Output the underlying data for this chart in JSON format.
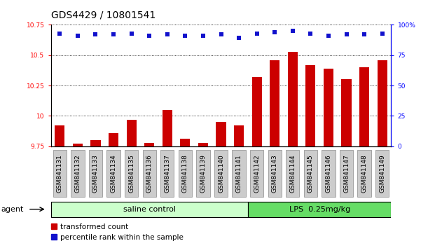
{
  "title": "GDS4429 / 10801541",
  "samples": [
    "GSM841131",
    "GSM841132",
    "GSM841133",
    "GSM841134",
    "GSM841135",
    "GSM841136",
    "GSM841137",
    "GSM841138",
    "GSM841139",
    "GSM841140",
    "GSM841141",
    "GSM841142",
    "GSM841143",
    "GSM841144",
    "GSM841145",
    "GSM841146",
    "GSM841147",
    "GSM841148",
    "GSM841149"
  ],
  "bar_values": [
    9.92,
    9.77,
    9.8,
    9.86,
    9.97,
    9.78,
    10.05,
    9.81,
    9.78,
    9.95,
    9.92,
    10.32,
    10.46,
    10.53,
    10.42,
    10.39,
    10.3,
    10.4,
    10.46
  ],
  "dot_values": [
    93,
    91,
    92,
    92,
    93,
    91,
    92,
    91,
    91,
    92,
    89,
    93,
    94,
    95,
    93,
    91,
    92,
    92,
    93
  ],
  "bar_color": "#cc0000",
  "dot_color": "#1111cc",
  "ylim_left": [
    9.75,
    10.75
  ],
  "ylim_right": [
    0,
    100
  ],
  "yticks_left": [
    9.75,
    10.0,
    10.25,
    10.5,
    10.75
  ],
  "ytick_labels_left": [
    "9.75",
    "10",
    "10.25",
    "10.5",
    "10.75"
  ],
  "yticks_right": [
    0,
    25,
    50,
    75,
    100
  ],
  "ytick_labels_right": [
    "0",
    "25",
    "50",
    "75",
    "100%"
  ],
  "group1_label": "saline control",
  "group2_label": "LPS  0.25mg/kg",
  "group1_count": 11,
  "group2_count": 8,
  "agent_label": "agent",
  "legend_bar": "transformed count",
  "legend_dot": "percentile rank within the sample",
  "bar_width": 0.55,
  "group1_color": "#ccffcc",
  "group2_color": "#66dd66",
  "title_fontsize": 10,
  "tick_fontsize": 6.5,
  "label_fontsize": 8
}
